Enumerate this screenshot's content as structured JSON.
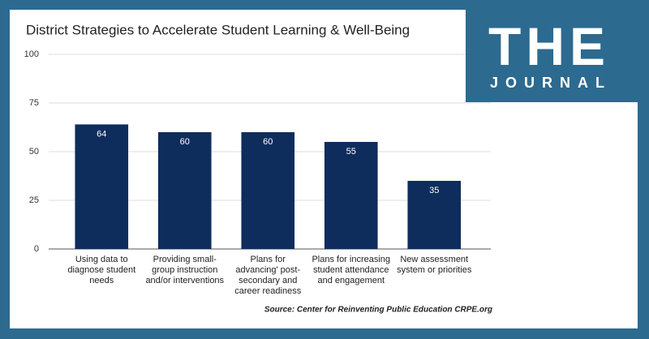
{
  "chart_data": {
    "type": "bar",
    "title": "District Strategies to Accelerate Student Learning & Well-Being",
    "categories": [
      "Using data to diagnose student needs",
      "Providing small-group instruction and/or interventions",
      "Plans for advancing' post-secondary and career readiness",
      "Plans for increasing student attendance and engagement",
      "New assessment system or priorities"
    ],
    "values": [
      64,
      60,
      60,
      55,
      35
    ],
    "color": "#0f2d5c",
    "ylim": [
      0,
      100
    ],
    "yticks": [
      0,
      25,
      50,
      75,
      100
    ],
    "grid": true,
    "source": "Source: Center for Reinventing Public Education CRPE.org"
  },
  "logo": {
    "top": "THE",
    "bottom": "JOURNAL"
  }
}
